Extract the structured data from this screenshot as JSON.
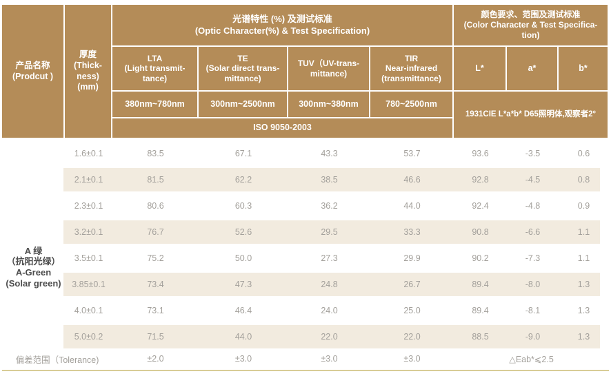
{
  "colors": {
    "header_bg": "#b48c58",
    "header_text": "#ffffff",
    "stripe_bg": "#f2ebdf",
    "data_text": "#a3a09b",
    "product_text": "#4d4d4d",
    "bottom_rule": "#d8cc96"
  },
  "header": {
    "product": "产品名称\n(Prodcut )",
    "thickness": "厚度\n(Thick-\nness)\n(mm)",
    "optic_group": "光谱特性 (%) 及测试标准\n(Optic Character(%) & Test Specification)",
    "color_group": "颜色要求、范围及测试标准\n(Color Character & Test Specifica-\ntion)",
    "cols": [
      {
        "label": "LTA\n(Light transmit-\ntance)",
        "range": "380nm~780nm"
      },
      {
        "label": "TE\n(Solar direct trans-\nmittance)",
        "range": "300nm~2500nm"
      },
      {
        "label": "TUV（UV-trans-\nmittance)",
        "range": "300nm~380nm"
      },
      {
        "label": "TIR\nNear-infrared\n(transmittance)",
        "range": "780~2500nm"
      }
    ],
    "lab_cols": [
      "L*",
      "a*",
      "b*"
    ],
    "cie_note": "1931CIE L*a*b*  D65照明体,观察者2°",
    "iso_note": "ISO 9050-2003"
  },
  "product_name": "A 绿\n（抗阳光绿）\nA-Green\n(Solar green)",
  "rows": [
    {
      "t": "1.6±0.1",
      "lta": "83.5",
      "te": "67.1",
      "tuv": "43.3",
      "tir": "53.7",
      "l": "93.6",
      "a": "-3.5",
      "b": "0.6"
    },
    {
      "t": "2.1±0.1",
      "lta": "81.5",
      "te": "62.2",
      "tuv": "38.5",
      "tir": "46.6",
      "l": "92.8",
      "a": "-4.5",
      "b": "0.8"
    },
    {
      "t": "2.3±0.1",
      "lta": "80.6",
      "te": "60.3",
      "tuv": "36.2",
      "tir": "44.0",
      "l": "92.4",
      "a": "-4.8",
      "b": "0.9"
    },
    {
      "t": "3.2±0.1",
      "lta": "76.7",
      "te": "52.6",
      "tuv": "29.5",
      "tir": "33.3",
      "l": "90.8",
      "a": "-6.6",
      "b": "1.1"
    },
    {
      "t": "3.5±0.1",
      "lta": "75.2",
      "te": "50.0",
      "tuv": "27.3",
      "tir": "29.9",
      "l": "90.2",
      "a": "-7.3",
      "b": "1.1"
    },
    {
      "t": "3.85±0.1",
      "lta": "73.4",
      "te": "47.3",
      "tuv": "24.8",
      "tir": "26.7",
      "l": "89.4",
      "a": "-8.0",
      "b": "1.3"
    },
    {
      "t": "4.0±0.1",
      "lta": "73.1",
      "te": "46.4",
      "tuv": "24.0",
      "tir": "25.0",
      "l": "89.4",
      "a": "-8.1",
      "b": "1.3"
    },
    {
      "t": "5.0±0.2",
      "lta": "71.5",
      "te": "44.0",
      "tuv": "22.0",
      "tir": "22.0",
      "l": "88.5",
      "a": "-9.0",
      "b": "1.3"
    }
  ],
  "tolerance": {
    "label": "偏差范围（Tolerance)",
    "lta": "±2.0",
    "te": "±3.0",
    "tuv": "±3.0",
    "tir": "±3.0",
    "eab": "△Eab*⩽2.5"
  }
}
